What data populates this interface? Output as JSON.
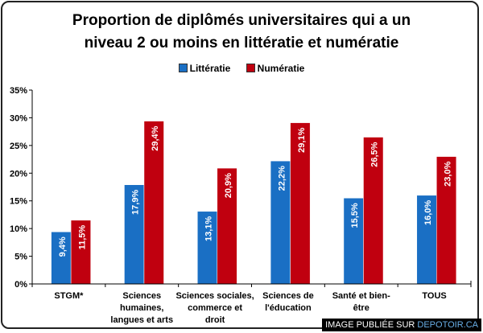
{
  "chart_data": {
    "type": "bar",
    "title": "Proportion  de diplômés universitaires  qui a un niveau 2 ou moins en littératie et numératie",
    "title_lines": [
      "Proportion  de diplômés universitaires  qui a un",
      "niveau 2 ou moins en littératie et numératie"
    ],
    "categories": [
      [
        "STGM*"
      ],
      [
        "Sciences",
        "humaines,",
        "langues et arts"
      ],
      [
        "Sciences sociales,",
        "commerce et",
        "droit"
      ],
      [
        "Sciences de",
        "l'éducation"
      ],
      [
        "Santé et bien-",
        "être"
      ],
      [
        "TOUS"
      ]
    ],
    "series": [
      {
        "name": "Littératie",
        "color": "#1a6fc4",
        "values": [
          9.4,
          17.9,
          13.1,
          22.2,
          15.5,
          16.0
        ],
        "labels": [
          "9,4%",
          "17,9%",
          "13,1%",
          "22,2%",
          "15,5%",
          "16,0%"
        ]
      },
      {
        "name": "Numératie",
        "color": "#c0000f",
        "values": [
          11.5,
          29.4,
          20.9,
          29.1,
          26.5,
          23.0
        ],
        "labels": [
          "11,5%",
          "29,4%",
          "20,9%",
          "29,1%",
          "26,5%",
          "23,0%"
        ]
      }
    ],
    "yticks": [
      "0%",
      "5%",
      "10%",
      "15%",
      "20%",
      "25%",
      "30%",
      "35%"
    ],
    "ylim": [
      0,
      35
    ],
    "legend": "top-center",
    "grid": false
  },
  "watermark": {
    "prefix": "IMAGE PUBLIÉE SUR ",
    "site": "DEPOTOIR.CA"
  }
}
